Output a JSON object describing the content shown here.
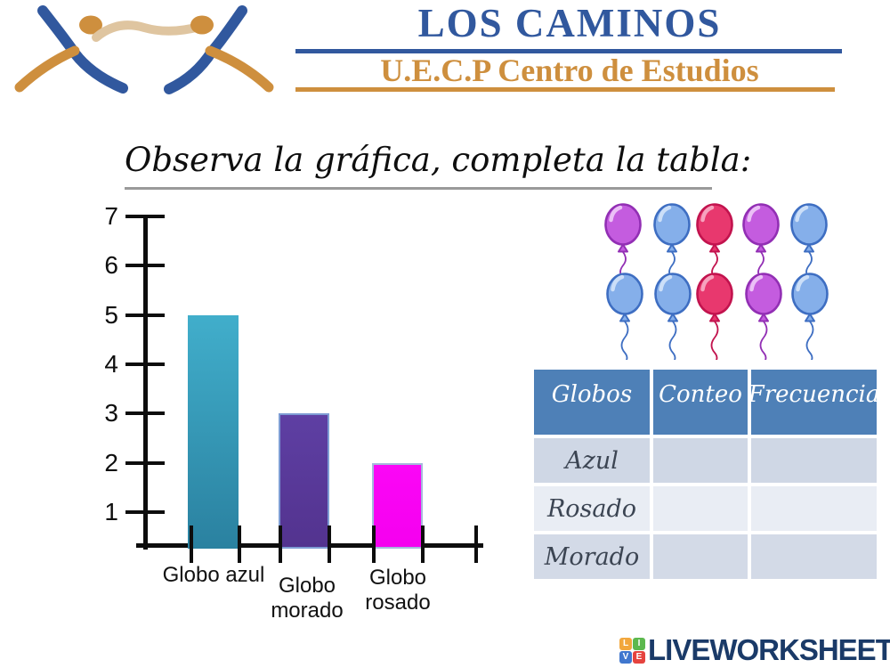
{
  "header": {
    "title": "LOS CAMINOS",
    "subtitle": "U.E.C.P Centro de Estudios",
    "colors": {
      "blue": "#31589E",
      "orange": "#CE8F3E",
      "beige": "#DFC5A0"
    }
  },
  "instruction": {
    "text": "Observa la gráfica, completa la tabla:"
  },
  "chart_data": {
    "type": "bar",
    "title": "",
    "xlabel": "",
    "ylabel": "",
    "categories": [
      "Globo azul",
      "Globo morado",
      "Globo rosado"
    ],
    "values": [
      5,
      3,
      2
    ],
    "yticks": [
      1,
      2,
      3,
      4,
      5,
      6,
      7
    ],
    "ylim": [
      0,
      7
    ],
    "grid": false,
    "legend": false,
    "bar_colors": [
      {
        "top": "#41AECB",
        "bottom": "#2A81A0",
        "border": "none"
      },
      {
        "top": "#5E3FA3",
        "bottom": "#53338F",
        "border": "#7E9CD4"
      },
      {
        "top": "#FB06F6",
        "bottom": "#F500EF",
        "border": "#A5B8DC"
      }
    ]
  },
  "balloons": {
    "rows": [
      [
        "purple",
        "blue",
        "pink",
        "purple",
        "blue"
      ],
      [
        "blue",
        "blue",
        "pink",
        "purple",
        "blue"
      ]
    ],
    "palette": {
      "purple": {
        "fill": "#C45CDF",
        "stroke": "#922FB4",
        "hi": "#EBC0F6"
      },
      "blue": {
        "fill": "#85AFEA",
        "stroke": "#3E6EC2",
        "hi": "#CCDFF8"
      },
      "pink": {
        "fill": "#E8386E",
        "stroke": "#C2134E",
        "hi": "#F6A3BE"
      }
    }
  },
  "table": {
    "headers": [
      "Globos",
      "Conteo",
      "Frecuencia"
    ],
    "rows": [
      {
        "label": "Azul",
        "conteo": "",
        "frecuencia": ""
      },
      {
        "label": "Rosado",
        "conteo": "",
        "frecuencia": ""
      },
      {
        "label": "Morado",
        "conteo": "",
        "frecuencia": ""
      }
    ],
    "header_bg": "#4E80B7",
    "row_bgs": [
      "#CFD7E5",
      "#E9EDF4",
      "#D3DAE7"
    ]
  },
  "footer": {
    "brand": "LIVEWORKSHEETS",
    "brand_color": "#1A3A68",
    "icon_letters": [
      "L",
      "I",
      "V",
      "E"
    ],
    "icon_colors": [
      "#F2A73D",
      "#5CB84E",
      "#4077CE",
      "#E5433E"
    ]
  }
}
